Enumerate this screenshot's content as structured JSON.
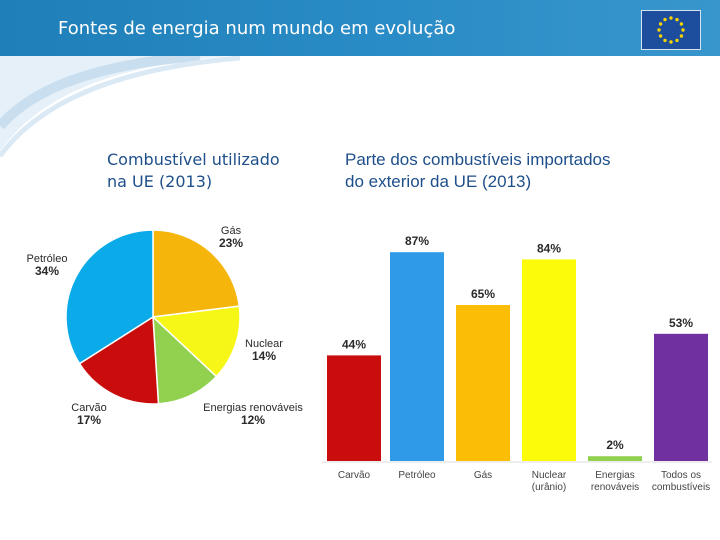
{
  "header": {
    "title": "Fontes de energia num mundo em evolução"
  },
  "colors": {
    "header": "#2a8cc6",
    "subtitle": "#1f4f8a",
    "eu_blue": "#1d4e9e",
    "eu_star": "#f7d300"
  },
  "chart_data": [
    {
      "type": "pie",
      "title_lines": [
        "Combustível utilizado",
        "na UE (2013)"
      ],
      "slices": [
        {
          "name": "Gás",
          "value": 23,
          "color": "#f6b50a"
        },
        {
          "name": "Nuclear",
          "value": 14,
          "color": "#f7f717"
        },
        {
          "name": "Energias renováveis",
          "value": 12,
          "color": "#92d050"
        },
        {
          "name": "Carvão",
          "value": 17,
          "color": "#c90d0d"
        },
        {
          "name": "Petróleo",
          "value": 34,
          "color": "#0aabe8"
        }
      ],
      "labels": [
        {
          "name": "Gás",
          "pct": "23%"
        },
        {
          "name": "Nuclear",
          "pct": "14%"
        },
        {
          "name": "Energias renováveis",
          "pct": "12%"
        },
        {
          "name": "Carvão",
          "pct": "17%"
        },
        {
          "name": "Petróleo",
          "pct": "34%"
        }
      ]
    },
    {
      "type": "bar",
      "title_lines": [
        "Parte dos combustíveis importados",
        "do exterior da UE (2013)"
      ],
      "categories": [
        [
          "Carvão"
        ],
        [
          "Petróleo"
        ],
        [
          "Gás"
        ],
        [
          "Nuclear",
          "(urânio)"
        ],
        [
          "Energias",
          "renováveis"
        ],
        [
          "Todos os",
          "combustíveis"
        ]
      ],
      "values": [
        44,
        87,
        65,
        84,
        2,
        53
      ],
      "value_labels": [
        "44%",
        "87%",
        "65%",
        "84%",
        "2%",
        "53%"
      ],
      "colors": [
        "#c90d0d",
        "#2f9be8",
        "#fbbd06",
        "#fcfc0a",
        "#92d050",
        "#7030a0"
      ],
      "ylim": [
        0,
        100
      ]
    }
  ]
}
